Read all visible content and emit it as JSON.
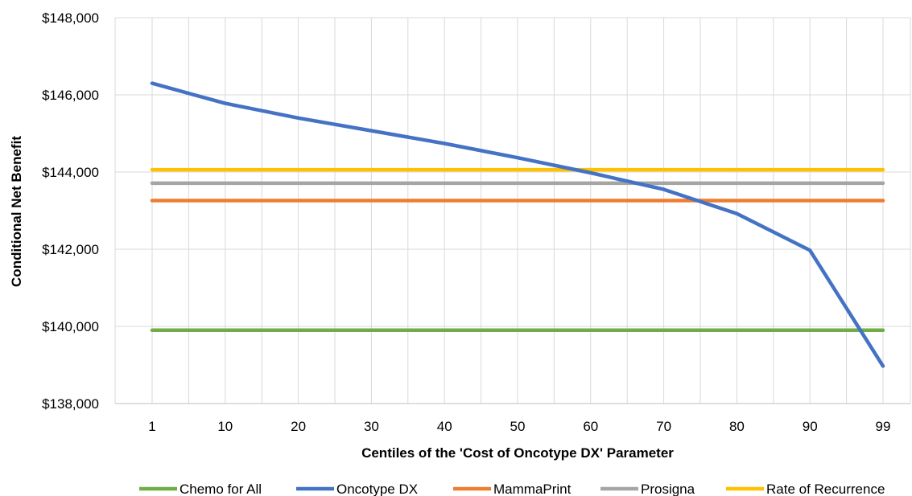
{
  "chart_data": {
    "type": "line",
    "title": "",
    "xlabel": "Centiles of the 'Cost of Oncotype DX' Parameter",
    "ylabel": "Conditional Net Benefit",
    "categories": [
      "1",
      "10",
      "20",
      "30",
      "40",
      "50",
      "60",
      "70",
      "80",
      "90",
      "99"
    ],
    "y_ticks": [
      "$138,000",
      "$140,000",
      "$142,000",
      "$144,000",
      "$146,000",
      "$148,000"
    ],
    "ylim": [
      138000,
      148000
    ],
    "grid": true,
    "legend_position": "bottom",
    "series": [
      {
        "name": "Chemo for All",
        "color": "#70AD47",
        "values": [
          139900,
          139900,
          139900,
          139900,
          139900,
          139900,
          139900,
          139900,
          139900,
          139900,
          139900
        ]
      },
      {
        "name": "Oncotype DX",
        "color": "#4472C4",
        "values": [
          146300,
          145780,
          145400,
          145070,
          144740,
          144370,
          143980,
          143550,
          142920,
          141970,
          138970
        ]
      },
      {
        "name": "MammaPrint",
        "color": "#ED7D31",
        "values": [
          143260,
          143260,
          143260,
          143260,
          143260,
          143260,
          143260,
          143260,
          143260,
          143260,
          143260
        ]
      },
      {
        "name": "Prosigna",
        "color": "#A5A5A5",
        "values": [
          143710,
          143710,
          143710,
          143710,
          143710,
          143710,
          143710,
          143710,
          143710,
          143710,
          143710
        ]
      },
      {
        "name": "Rate of Recurrence",
        "color": "#FFC000",
        "values": [
          144060,
          144060,
          144060,
          144060,
          144060,
          144060,
          144060,
          144060,
          144060,
          144060,
          144060
        ]
      }
    ]
  }
}
